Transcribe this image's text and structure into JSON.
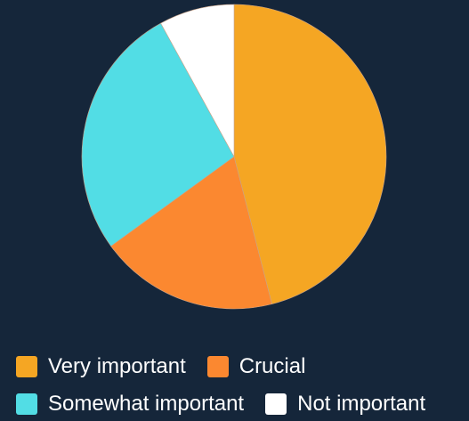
{
  "chart_data": {
    "type": "pie",
    "slices": [
      {
        "label": "Very important",
        "value": 46,
        "color": "#f5a623"
      },
      {
        "label": "Crucial",
        "value": 19,
        "color": "#fb8830"
      },
      {
        "label": "Somewhat important",
        "value": 27,
        "color": "#52dde5"
      },
      {
        "label": "Not important",
        "value": 8,
        "color": "#ffffff"
      }
    ],
    "legend": {
      "placement": "bottom-left",
      "items": [
        "Very important",
        "Crucial",
        "Somewhat important",
        "Not important"
      ]
    }
  },
  "colors": {
    "background": "#15263a",
    "slice_border": "#c9a48a"
  }
}
